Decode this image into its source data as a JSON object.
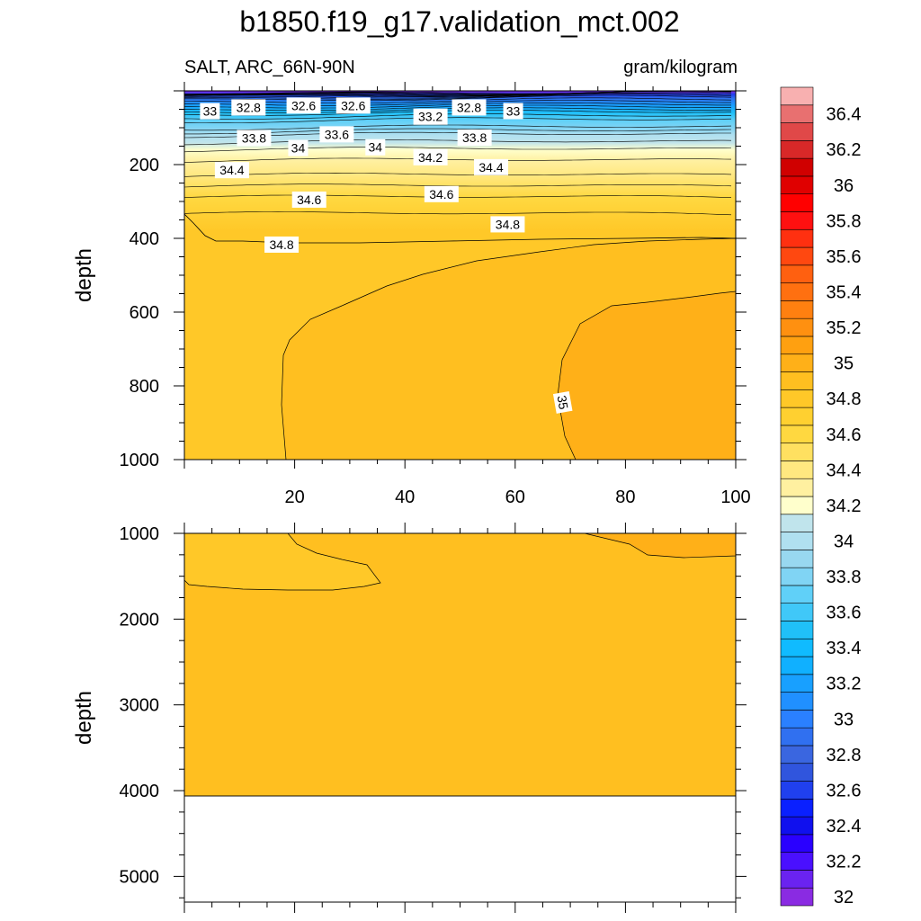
{
  "chart_data": {
    "type": "contour",
    "title": "b1850.f19_g17.validation_mct.002",
    "left_subtitle": "SALT, ARC_66N-90N",
    "right_subtitle": "gram/kilogram",
    "panels": [
      {
        "name": "upper",
        "ylabel": "depth",
        "xlim": [
          0,
          100
        ],
        "ylim": [
          1000,
          0
        ],
        "xticks": [
          20,
          40,
          60,
          80,
          100
        ],
        "yticks": [
          200,
          400,
          600,
          800,
          1000
        ],
        "xtick_labels": [
          "20",
          "40",
          "60",
          "80",
          "100"
        ],
        "ytick_labels": [
          "200",
          "400",
          "600",
          "800",
          "1000"
        ],
        "profile": [
          {
            "depth": 0,
            "value": 31.9
          },
          {
            "depth": 10,
            "value": 32.6
          },
          {
            "depth": 20,
            "value": 32.9
          },
          {
            "depth": 40,
            "value": 33.2
          },
          {
            "depth": 60,
            "value": 33.5
          },
          {
            "depth": 80,
            "value": 33.7
          },
          {
            "depth": 100,
            "value": 33.8
          },
          {
            "depth": 120,
            "value": 34.0
          },
          {
            "depth": 140,
            "value": 34.1
          },
          {
            "depth": 160,
            "value": 34.2
          },
          {
            "depth": 190,
            "value": 34.3
          },
          {
            "depth": 230,
            "value": 34.4
          },
          {
            "depth": 290,
            "value": 34.6
          },
          {
            "depth": 380,
            "value": 34.8
          }
        ],
        "regions": [
          {
            "name": "34.8-34.9",
            "value": 34.85
          },
          {
            "name": "34.9-35.0",
            "value": 34.95
          },
          {
            "name": "35.0-35.1",
            "value": 35.05
          }
        ],
        "contour_labels": [
          {
            "text": "33",
            "x": 3,
            "depth": 55
          },
          {
            "text": "32.8",
            "x": 10,
            "depth": 45
          },
          {
            "text": "32.6",
            "x": 20,
            "depth": 40
          },
          {
            "text": "32.6",
            "x": 29,
            "depth": 40
          },
          {
            "text": "33.2",
            "x": 43,
            "depth": 70
          },
          {
            "text": "32.8",
            "x": 50,
            "depth": 45
          },
          {
            "text": "33",
            "x": 58,
            "depth": 55
          },
          {
            "text": "33.8",
            "x": 11,
            "depth": 128
          },
          {
            "text": "33.6",
            "x": 26,
            "depth": 118
          },
          {
            "text": "34",
            "x": 19,
            "depth": 155
          },
          {
            "text": "34",
            "x": 33,
            "depth": 153
          },
          {
            "text": "34.2",
            "x": 43,
            "depth": 180
          },
          {
            "text": "33.8",
            "x": 51,
            "depth": 127
          },
          {
            "text": "34.4",
            "x": 7,
            "depth": 215
          },
          {
            "text": "34.4",
            "x": 54,
            "depth": 207
          },
          {
            "text": "34.6",
            "x": 21,
            "depth": 295
          },
          {
            "text": "34.6",
            "x": 45,
            "depth": 280
          },
          {
            "text": "34.8",
            "x": 57,
            "depth": 362
          },
          {
            "text": "34.8",
            "x": 16,
            "depth": 417
          },
          {
            "text": "35",
            "x": 67,
            "depth": 845
          }
        ]
      },
      {
        "name": "lower",
        "ylabel": "depth",
        "xlim": [
          0,
          100
        ],
        "ylim": [
          5300,
          1000
        ],
        "yticks": [
          1000,
          2000,
          3000,
          4000,
          5000
        ],
        "ytick_labels": [
          "1000",
          "2000",
          "3000",
          "4000",
          "5000"
        ],
        "bottom_depth": 4100,
        "regions": [
          {
            "name": "34.8-34.9 shallow lens",
            "value": 34.85
          },
          {
            "name": "34.9-35.0 background",
            "value": 34.95
          },
          {
            "name": "35.0-35.1 right patch",
            "value": 35.05
          },
          {
            "name": "no data below bottom",
            "value": null
          }
        ]
      }
    ],
    "colorbar": {
      "levels": [
        32,
        32.1,
        32.2,
        32.3,
        32.4,
        32.5,
        32.6,
        32.7,
        32.8,
        32.9,
        33,
        33.1,
        33.2,
        33.3,
        33.4,
        33.5,
        33.6,
        33.7,
        33.8,
        33.9,
        34,
        34.1,
        34.2,
        34.3,
        34.4,
        34.5,
        34.6,
        34.7,
        34.8,
        34.9,
        35,
        35.1,
        35.2,
        35.3,
        35.4,
        35.5,
        35.6,
        35.7,
        35.8,
        35.9,
        36,
        36.1,
        36.2,
        36.3,
        36.4,
        36.5
      ],
      "labeled_values": [
        "32",
        "32.2",
        "32.4",
        "32.6",
        "32.8",
        "33",
        "33.2",
        "33.4",
        "33.6",
        "33.8",
        "34",
        "34.2",
        "34.4",
        "34.6",
        "34.8",
        "35",
        "35.2",
        "35.4",
        "35.6",
        "35.8",
        "36",
        "36.2",
        "36.4"
      ],
      "colors": [
        "#8a2be2",
        "#6a23f0",
        "#4a10ff",
        "#2a00ff",
        "#1010ee",
        "#0a20ff",
        "#2040ee",
        "#3055dd",
        "#3a66e0",
        "#3070f0",
        "#2a80ff",
        "#2090ff",
        "#18a0ff",
        "#10b0ff",
        "#10bbff",
        "#20c0f8",
        "#40c8f8",
        "#60d0f8",
        "#80d4f4",
        "#98d8f0",
        "#b0e0f0",
        "#c0e4ec",
        "#ffffcc",
        "#fff0a0",
        "#ffe880",
        "#ffe060",
        "#ffd840",
        "#ffd030",
        "#ffc828",
        "#ffbf20",
        "#ffb018",
        "#ffa010",
        "#ff9010",
        "#ff8010",
        "#ff7010",
        "#ff6010",
        "#ff4810",
        "#ff3010",
        "#ff1010",
        "#ff0000",
        "#e00000",
        "#d00000",
        "#d82828",
        "#e04848",
        "#e87070",
        "#f8b0b0"
      ]
    }
  }
}
